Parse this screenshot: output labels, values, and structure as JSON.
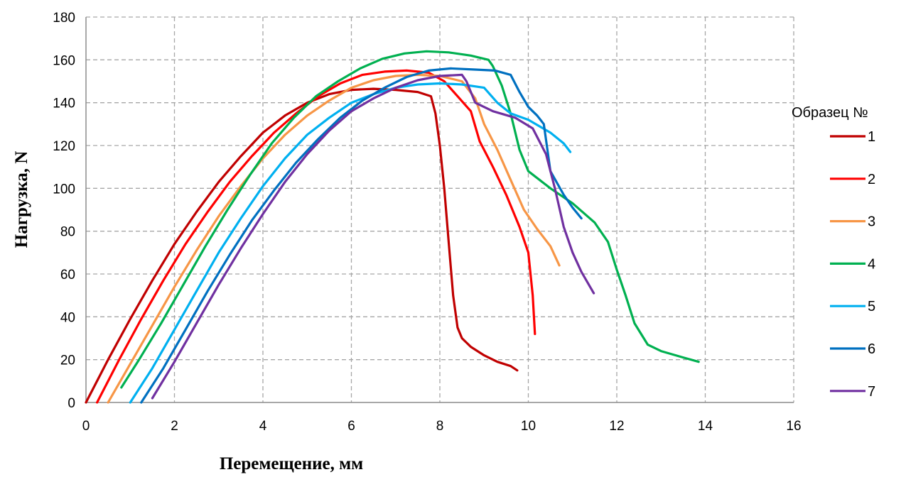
{
  "chart_data": {
    "type": "line",
    "title": "",
    "xlabel": "Перемещение, мм",
    "ylabel": "Нагрузка, N",
    "xlim": [
      0,
      16
    ],
    "ylim": [
      0,
      180
    ],
    "xticks": [
      "0",
      "2",
      "4",
      "6",
      "8",
      "10",
      "12",
      "14",
      "16"
    ],
    "yticks": [
      "0",
      "20",
      "40",
      "60",
      "80",
      "100",
      "120",
      "140",
      "160",
      "180"
    ],
    "grid": true,
    "legend": {
      "title": "Образец  №",
      "placement": "right"
    },
    "series": [
      {
        "name": "1",
        "color": "#C00000",
        "x": [
          0,
          0.5,
          1,
          1.5,
          2,
          2.5,
          3,
          3.5,
          4,
          4.5,
          5,
          5.5,
          6,
          6.5,
          7,
          7.5,
          7.8,
          7.9,
          8.0,
          8.1,
          8.2,
          8.3,
          8.4,
          8.5,
          8.7,
          9.0,
          9.3,
          9.6,
          9.75
        ],
        "y": [
          0,
          20,
          39,
          57,
          74,
          89,
          103,
          115,
          126,
          134,
          140,
          144,
          146,
          146.5,
          146,
          145,
          143,
          135,
          120,
          100,
          75,
          50,
          35,
          30,
          26,
          22,
          19,
          17,
          15
        ]
      },
      {
        "name": "2",
        "color": "#FF0000",
        "x": [
          0.25,
          0.75,
          1.25,
          1.75,
          2.25,
          2.75,
          3.25,
          3.75,
          4.25,
          4.75,
          5.25,
          5.75,
          6.25,
          6.75,
          7.25,
          7.75,
          8.1,
          8.4,
          8.7,
          8.9,
          9.2,
          9.5,
          9.8,
          10.0,
          10.1,
          10.15
        ],
        "y": [
          0,
          20,
          39,
          57,
          74,
          89,
          103,
          115,
          126,
          135,
          143,
          149,
          153,
          154.5,
          155,
          154,
          150,
          143,
          136,
          122,
          110,
          97,
          82,
          70,
          50,
          32
        ]
      },
      {
        "name": "3",
        "color": "#F79646",
        "x": [
          0.5,
          1,
          1.5,
          2,
          2.5,
          3,
          3.5,
          4,
          4.5,
          5,
          5.5,
          6,
          6.5,
          7,
          7.5,
          8,
          8.5,
          8.8,
          9.0,
          9.3,
          9.6,
          9.9,
          10.2,
          10.5,
          10.7
        ],
        "y": [
          0,
          18,
          36,
          54,
          71,
          87,
          101,
          114,
          125,
          134,
          141,
          147,
          150.5,
          152.5,
          153,
          152.5,
          150,
          142,
          130,
          118,
          104,
          90,
          81,
          73,
          64
        ]
      },
      {
        "name": "4",
        "color": "#00B050",
        "x": [
          0.8,
          1.2,
          1.7,
          2.2,
          2.7,
          3.2,
          3.7,
          4.2,
          4.7,
          5.2,
          5.7,
          6.2,
          6.7,
          7.2,
          7.7,
          8.2,
          8.7,
          9.1,
          9.2,
          9.4,
          9.6,
          9.8,
          10.0,
          10.5,
          11.0,
          11.5,
          11.8,
          12.0,
          12.2,
          12.4,
          12.7,
          13.0,
          13.5,
          13.85
        ],
        "y": [
          7,
          20,
          37,
          55,
          73,
          90,
          106,
          121,
          133,
          143,
          150,
          156,
          160.5,
          163,
          164,
          163.5,
          162,
          160,
          157,
          148,
          135,
          118,
          108,
          100,
          93,
          84,
          75,
          62,
          50,
          37,
          27,
          24,
          21,
          19
        ]
      },
      {
        "name": "5",
        "color": "#00B0F0",
        "x": [
          1.0,
          1.5,
          2,
          2.5,
          3,
          3.5,
          4,
          4.5,
          5,
          5.5,
          6,
          6.5,
          7,
          7.5,
          8,
          8.5,
          9.0,
          9.3,
          9.6,
          10.0,
          10.5,
          10.8,
          10.95
        ],
        "y": [
          0,
          16,
          34,
          52,
          70,
          86,
          101,
          114,
          125,
          133,
          140,
          144,
          147,
          148.5,
          149,
          148.5,
          147,
          140,
          135,
          132,
          126,
          121,
          117
        ]
      },
      {
        "name": "6",
        "color": "#0070C0",
        "x": [
          1.25,
          1.75,
          2.25,
          2.75,
          3.25,
          3.75,
          4.25,
          4.75,
          5.25,
          5.75,
          6.25,
          6.75,
          7.25,
          7.75,
          8.25,
          8.75,
          9.25,
          9.6,
          9.8,
          10.0,
          10.2,
          10.35,
          10.5,
          10.8,
          11.0,
          11.2
        ],
        "y": [
          0,
          16,
          34,
          52,
          69,
          85,
          99,
          112,
          123,
          133,
          141,
          147,
          152,
          155,
          156,
          155.5,
          155,
          153,
          145,
          138,
          134,
          130,
          108,
          97,
          91,
          86
        ]
      },
      {
        "name": "7",
        "color": "#7030A0",
        "x": [
          1.5,
          2,
          2.5,
          3,
          3.5,
          4,
          4.5,
          5,
          5.5,
          6,
          6.5,
          7,
          7.5,
          8,
          8.5,
          8.6,
          8.8,
          9.2,
          9.7,
          10.1,
          10.4,
          10.6,
          10.8,
          11.0,
          11.2,
          11.48
        ],
        "y": [
          2,
          19,
          37,
          55,
          72,
          88,
          103,
          116,
          127,
          136,
          142,
          147,
          150.5,
          152.5,
          153,
          150,
          140,
          136,
          133,
          128,
          116,
          100,
          82,
          70,
          61,
          51
        ]
      }
    ]
  }
}
